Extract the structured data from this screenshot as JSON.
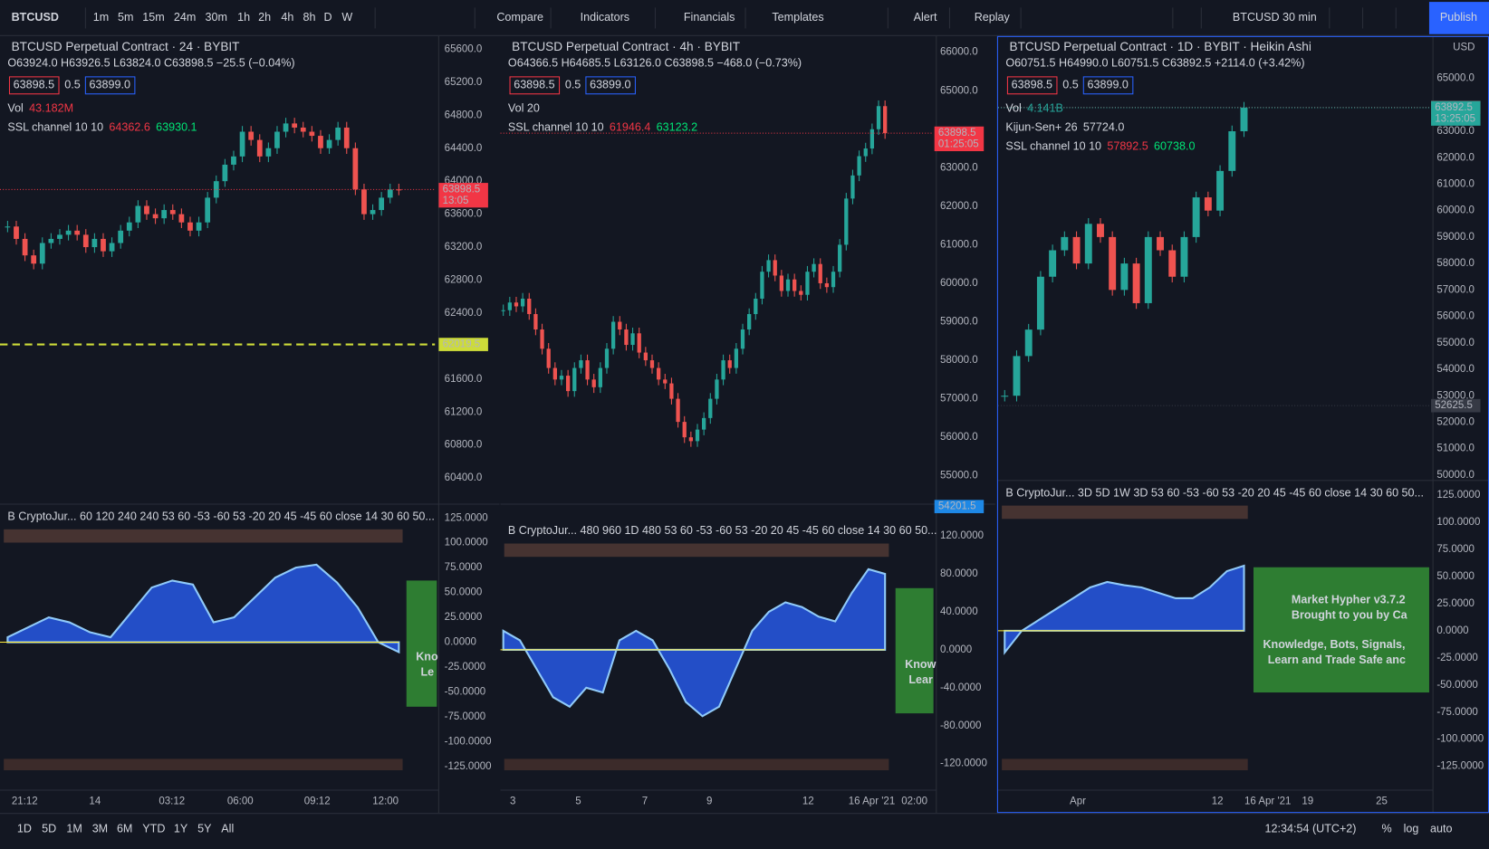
{
  "toolbar": {
    "symbol": "BTCUSD",
    "intervals": [
      "1m",
      "5m",
      "15m",
      "24m",
      "30m",
      "1h",
      "2h",
      "4h",
      "8h",
      "D",
      "W"
    ],
    "active": "D",
    "items": [
      "Compare",
      "Indicators",
      "Financials",
      "Templates",
      "Alert",
      "Replay"
    ],
    "layout_symbol": "BTCUSD 30 min",
    "publish": "Publish"
  },
  "panels": [
    {
      "title": "BTCUSD Perpetual Contract · 24 · BYBIT",
      "ohlc": "O63924.0 H63926.5 L63824.0 C63898.5 −25.5 (−0.04%)",
      "ohlc_color": "#f23645",
      "bid": "63898.5",
      "spread": "0.5",
      "ask": "63899.0",
      "legend": [
        {
          "name": "Vol",
          "values": [
            {
              "text": "43.182M",
              "color": "#f23645"
            }
          ]
        },
        {
          "name": "SSL channel 10 10",
          "values": [
            {
              "text": "64362.6",
              "color": "#f23645"
            },
            {
              "text": "63930.1",
              "color": "#00e676"
            }
          ]
        }
      ],
      "ylim": [
        60100,
        65760
      ],
      "yticks": [
        {
          "value": 65600,
          "label": "65600.0"
        },
        {
          "value": 65200,
          "label": "65200.0"
        },
        {
          "value": 64800,
          "label": "64800.0"
        },
        {
          "value": 64400,
          "label": "64400.0"
        },
        {
          "value": 64000,
          "label": "64000.0"
        },
        {
          "value": 63600,
          "label": "63600.0"
        },
        {
          "value": 63200,
          "label": "63200.0"
        },
        {
          "value": 62800,
          "label": "62800.0"
        },
        {
          "value": 62400,
          "label": "62400.0"
        },
        {
          "value": 61600,
          "label": "61600.0"
        },
        {
          "value": 61200,
          "label": "61200.0"
        },
        {
          "value": 60800,
          "label": "60800.0"
        },
        {
          "value": 60400,
          "label": "60400.0"
        }
      ],
      "tags": [
        {
          "price": 63898.5,
          "time": "13:05",
          "color": "#f23645"
        },
        {
          "price": 62019.5,
          "color": "#cddc39"
        }
      ],
      "closes": [
        63450,
        63300,
        63100,
        63000,
        63250,
        63300,
        63350,
        63400,
        63350,
        63200,
        63300,
        63150,
        63250,
        63400,
        63500,
        63700,
        63600,
        63550,
        63650,
        63600,
        63500,
        63400,
        63500,
        63800,
        64000,
        64200,
        64300,
        64600,
        64500,
        64300,
        64400,
        64600,
        64700,
        64650,
        64600,
        64550,
        64400,
        64500,
        64650,
        64400,
        63900,
        63600,
        63650,
        63800,
        63900,
        63898.5
      ],
      "oscillator_label": "B CryptoJur... 60 120 240 240 53 60 -53 -60 53 -20 20 45 -45 60 close 14 30 60 50...",
      "oscillator_ylim": [
        -146,
        137.4
      ],
      "oscillator_ticks": [
        {
          "value": 125,
          "label": "125.0000"
        },
        {
          "value": 100,
          "label": "100.0000"
        },
        {
          "value": 75,
          "label": "75.0000"
        },
        {
          "value": 50,
          "label": "50.0000"
        },
        {
          "value": 25,
          "label": "25.0000"
        },
        {
          "value": 0,
          "label": "0.0000"
        },
        {
          "value": -25,
          "label": "-25.0000"
        },
        {
          "value": -50,
          "label": "-50.0000"
        },
        {
          "value": -75,
          "label": "-75.0000"
        },
        {
          "value": -100,
          "label": "-100.0000"
        },
        {
          "value": -125,
          "label": "-125.0000"
        }
      ],
      "oscillator_values": [
        5,
        15,
        25,
        20,
        10,
        5,
        30,
        55,
        62,
        58,
        20,
        25,
        45,
        65,
        75,
        78,
        60,
        35,
        0,
        -10
      ],
      "box": [
        "Kno",
        "Le"
      ],
      "time_axis": [
        "21:12",
        "14",
        "03:12",
        "06:00",
        "09:12",
        "12:00"
      ]
    },
    {
      "title": "BTCUSD Perpetual Contract · 4h · BYBIT",
      "ohlc": "O64366.5 H64685.5 L63126.0 C63898.5 −468.0 (−0.73%)",
      "ohlc_color": "#f23645",
      "bid": "63898.5",
      "spread": "0.5",
      "ask": "63899.0",
      "legend": [
        {
          "name": "Vol 20",
          "values": []
        },
        {
          "name": "SSL channel 10 10",
          "values": [
            {
              "text": "61946.4",
              "color": "#f23645"
            },
            {
              "text": "63123.2",
              "color": "#00e676"
            }
          ]
        }
      ],
      "ylim": [
        54300,
        66420
      ],
      "yticks": [
        {
          "value": 66000,
          "label": "66000.0"
        },
        {
          "value": 65000,
          "label": "65000.0"
        },
        {
          "value": 63000,
          "label": "63000.0"
        },
        {
          "value": 62000,
          "label": "62000.0"
        },
        {
          "value": 61000,
          "label": "61000.0"
        },
        {
          "value": 60000,
          "label": "60000.0"
        },
        {
          "value": 59000,
          "label": "59000.0"
        },
        {
          "value": 58000,
          "label": "58000.0"
        },
        {
          "value": 57000,
          "label": "57000.0"
        },
        {
          "value": 56000,
          "label": "56000.0"
        },
        {
          "value": 55000,
          "label": "55000.0"
        }
      ],
      "tags": [
        {
          "price": 63898.5,
          "time": "01:25:05",
          "color": "#f23645"
        },
        {
          "price": 54201.5,
          "color": "#1e88e5"
        }
      ],
      "closes": [
        59300,
        59500,
        59400,
        59600,
        59200,
        58800,
        58300,
        57800,
        57500,
        57600,
        57200,
        57800,
        58000,
        57500,
        57300,
        57800,
        58300,
        59000,
        58800,
        58400,
        58700,
        58200,
        58000,
        57800,
        57500,
        57400,
        57000,
        56400,
        56000,
        55900,
        56200,
        56500,
        57000,
        57500,
        58000,
        57800,
        58300,
        58800,
        59200,
        59600,
        60300,
        60600,
        60200,
        59800,
        60100,
        59800,
        59700,
        60300,
        60500,
        60000,
        59900,
        60300,
        61000,
        62200,
        62800,
        63300,
        63500,
        64000,
        64600,
        63898.5
      ],
      "oscillator_label": "B CryptoJur... 480 960 1D 480 53 60 -53 -60 53 -20 20 45 -45 60 close 14 30 60 50...",
      "oscillator_ylim": [
        -145,
        137
      ],
      "oscillator_ticks": [
        {
          "value": 120,
          "label": "120.0000"
        },
        {
          "value": 80,
          "label": "80.0000"
        },
        {
          "value": 40,
          "label": "40.0000"
        },
        {
          "value": 0,
          "label": "0.0000"
        },
        {
          "value": -40,
          "label": "-40.0000"
        },
        {
          "value": -80,
          "label": "-80.0000"
        },
        {
          "value": -120,
          "label": "-120.0000"
        }
      ],
      "oscillator_values": [
        20,
        10,
        -20,
        -50,
        -60,
        -40,
        -45,
        10,
        20,
        10,
        -20,
        -55,
        -70,
        -60,
        -20,
        20,
        40,
        50,
        45,
        35,
        30,
        60,
        85,
        80
      ],
      "box": [
        "Know",
        "Lear"
      ],
      "time_axis": [
        "3",
        "5",
        "7",
        "9",
        "12",
        "16 Apr '21",
        "02:00"
      ]
    },
    {
      "title": "BTCUSD Perpetual Contract · 1D · BYBIT · Heikin Ashi",
      "ohlc": "O60751.5 H64990.0 L60751.5 C63892.5 +2114.0 (+3.42%)",
      "ohlc_color": "#26a69a",
      "bid": "63898.5",
      "spread": "0.5",
      "ask": "63899.0",
      "legend": [
        {
          "name": "Vol",
          "values": [
            {
              "text": "4.141B",
              "color": "#26a69a"
            }
          ]
        },
        {
          "name": "Kijun-Sen+ 26",
          "values": [
            {
              "text": "57724.0",
              "color": "#d1d4dc"
            }
          ]
        },
        {
          "name": "SSL channel 10 10",
          "values": [
            {
              "text": "57892.5",
              "color": "#f23645"
            },
            {
              "text": "60738.0",
              "color": "#00e676"
            }
          ]
        }
      ],
      "currency": "USD",
      "ylim": [
        49850,
        66600
      ],
      "yticks": [
        {
          "value": 65000,
          "label": "65000.0"
        },
        {
          "value": 63000,
          "label": "63000.0"
        },
        {
          "value": 62000,
          "label": "62000.0"
        },
        {
          "value": 61000,
          "label": "61000.0"
        },
        {
          "value": 60000,
          "label": "60000.0"
        },
        {
          "value": 59000,
          "label": "59000.0"
        },
        {
          "value": 58000,
          "label": "58000.0"
        },
        {
          "value": 57000,
          "label": "57000.0"
        },
        {
          "value": 56000,
          "label": "56000.0"
        },
        {
          "value": 55000,
          "label": "55000.0"
        },
        {
          "value": 54000,
          "label": "54000.0"
        },
        {
          "value": 53000,
          "label": "53000.0"
        },
        {
          "value": 52000,
          "label": "52000.0"
        },
        {
          "value": 51000,
          "label": "51000.0"
        },
        {
          "value": 50000,
          "label": "50000.0"
        }
      ],
      "tags": [
        {
          "price": 63898.5,
          "color": "#f23645"
        },
        {
          "price": 63892.5,
          "time": "13:25:05",
          "color": "#26a69a"
        },
        {
          "price": 52625.5,
          "color": "#363a45"
        }
      ],
      "closes": [
        53000,
        54500,
        55500,
        57500,
        58500,
        59000,
        58000,
        59500,
        59000,
        57000,
        58000,
        56500,
        59000,
        58500,
        57500,
        59000,
        60500,
        60000,
        61500,
        63000,
        63892.5
      ],
      "oscillator_label": "B CryptoJur... 3D 5D 1W 3D 53 60 -53 -60 53 -20 20 45 -45 60 close 14 30 60 50...",
      "oscillator_ylim": [
        -144.4,
        137.3
      ],
      "oscillator_ticks": [
        {
          "value": 125,
          "label": "125.0000"
        },
        {
          "value": 100,
          "label": "100.0000"
        },
        {
          "value": 75,
          "label": "75.0000"
        },
        {
          "value": 50,
          "label": "50.0000"
        },
        {
          "value": 25,
          "label": "25.0000"
        },
        {
          "value": 0,
          "label": "0.0000"
        },
        {
          "value": -25,
          "label": "-25.0000"
        },
        {
          "value": -50,
          "label": "-50.0000"
        },
        {
          "value": -75,
          "label": "-75.0000"
        },
        {
          "value": -100,
          "label": "-100.0000"
        },
        {
          "value": -125,
          "label": "-125.0000"
        }
      ],
      "oscillator_values": [
        -20,
        0,
        10,
        20,
        30,
        40,
        45,
        42,
        40,
        35,
        30,
        30,
        40,
        55,
        60
      ],
      "box": [
        "Market Hypher v3.7.2",
        "Brought to you by Ca",
        "Knowledge, Bots, Signals,",
        "Learn and Trade Safe anc"
      ],
      "time_axis": [
        "Apr",
        "12",
        "16 Apr '21",
        "19",
        "25"
      ]
    }
  ],
  "bottom": {
    "ranges": [
      "1D",
      "5D",
      "1M",
      "3M",
      "6M",
      "YTD",
      "1Y",
      "5Y",
      "All"
    ],
    "clock": "12:34:54 (UTC+2)",
    "options": [
      "%",
      "log",
      "auto"
    ]
  }
}
